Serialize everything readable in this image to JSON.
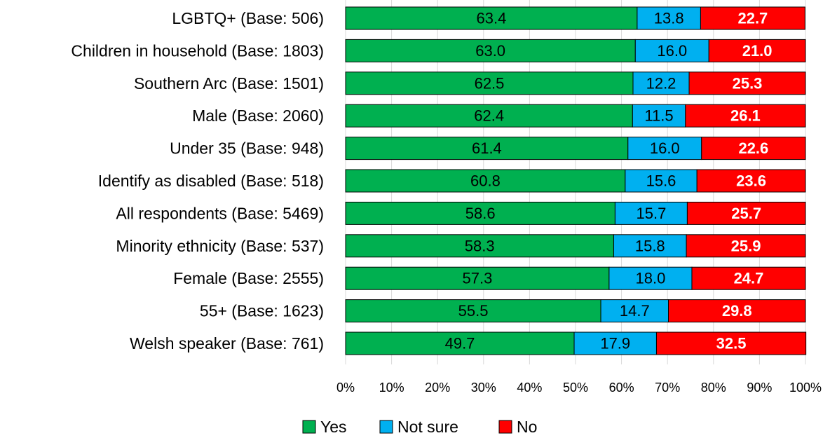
{
  "chart_data": {
    "type": "bar",
    "orientation": "horizontal",
    "stacked": "percent",
    "categories": [
      "LGBTQ+ (Base: 506)",
      "Children in household (Base: 1803)",
      "Southern Arc (Base: 1501)",
      "Male (Base: 2060)",
      "Under 35 (Base: 948)",
      "Identify as disabled (Base: 518)",
      "All respondents (Base: 5469)",
      "Minority ethnicity (Base: 537)",
      "Female (Base: 2555)",
      "55+ (Base: 1623)",
      "Welsh speaker (Base: 761)"
    ],
    "series": [
      {
        "name": "Yes",
        "color": "#00b050",
        "label_color": "#000000",
        "label_bold": false,
        "values": [
          63.4,
          63.0,
          62.5,
          62.4,
          61.4,
          60.8,
          58.6,
          58.3,
          57.3,
          55.5,
          49.7
        ]
      },
      {
        "name": "Not sure",
        "color": "#00b0f0",
        "label_color": "#000000",
        "label_bold": false,
        "values": [
          13.8,
          16.0,
          12.2,
          11.5,
          16.0,
          15.6,
          15.7,
          15.8,
          18.0,
          14.7,
          17.9
        ]
      },
      {
        "name": "No",
        "color": "#ff0000",
        "label_color": "#ffffff",
        "label_bold": true,
        "values": [
          22.7,
          21.0,
          25.3,
          26.1,
          22.6,
          23.6,
          25.7,
          25.9,
          24.7,
          29.8,
          32.5
        ]
      }
    ],
    "data_labels": [
      [
        "63.4",
        "63.0",
        "62.5",
        "62.4",
        "61.4",
        "60.8",
        "58.6",
        "58.3",
        "57.3",
        "55.5",
        "49.7"
      ],
      [
        "13.8",
        "16.0",
        "12.2",
        "11.5",
        "16.0",
        "15.6",
        "15.7",
        "15.8",
        "18.0",
        "14.7",
        "17.9"
      ],
      [
        "22.7",
        "21.0",
        "25.3",
        "26.1",
        "22.6",
        "23.6",
        "25.7",
        "25.9",
        "24.7",
        "29.8",
        "32.5"
      ]
    ],
    "xticks": [
      "0%",
      "10%",
      "20%",
      "30%",
      "40%",
      "50%",
      "60%",
      "70%",
      "80%",
      "90%",
      "100%"
    ],
    "xlim": [
      0,
      100
    ],
    "title": "",
    "xlabel": "",
    "ylabel": "",
    "grid": true,
    "legend": "bottom-center"
  }
}
